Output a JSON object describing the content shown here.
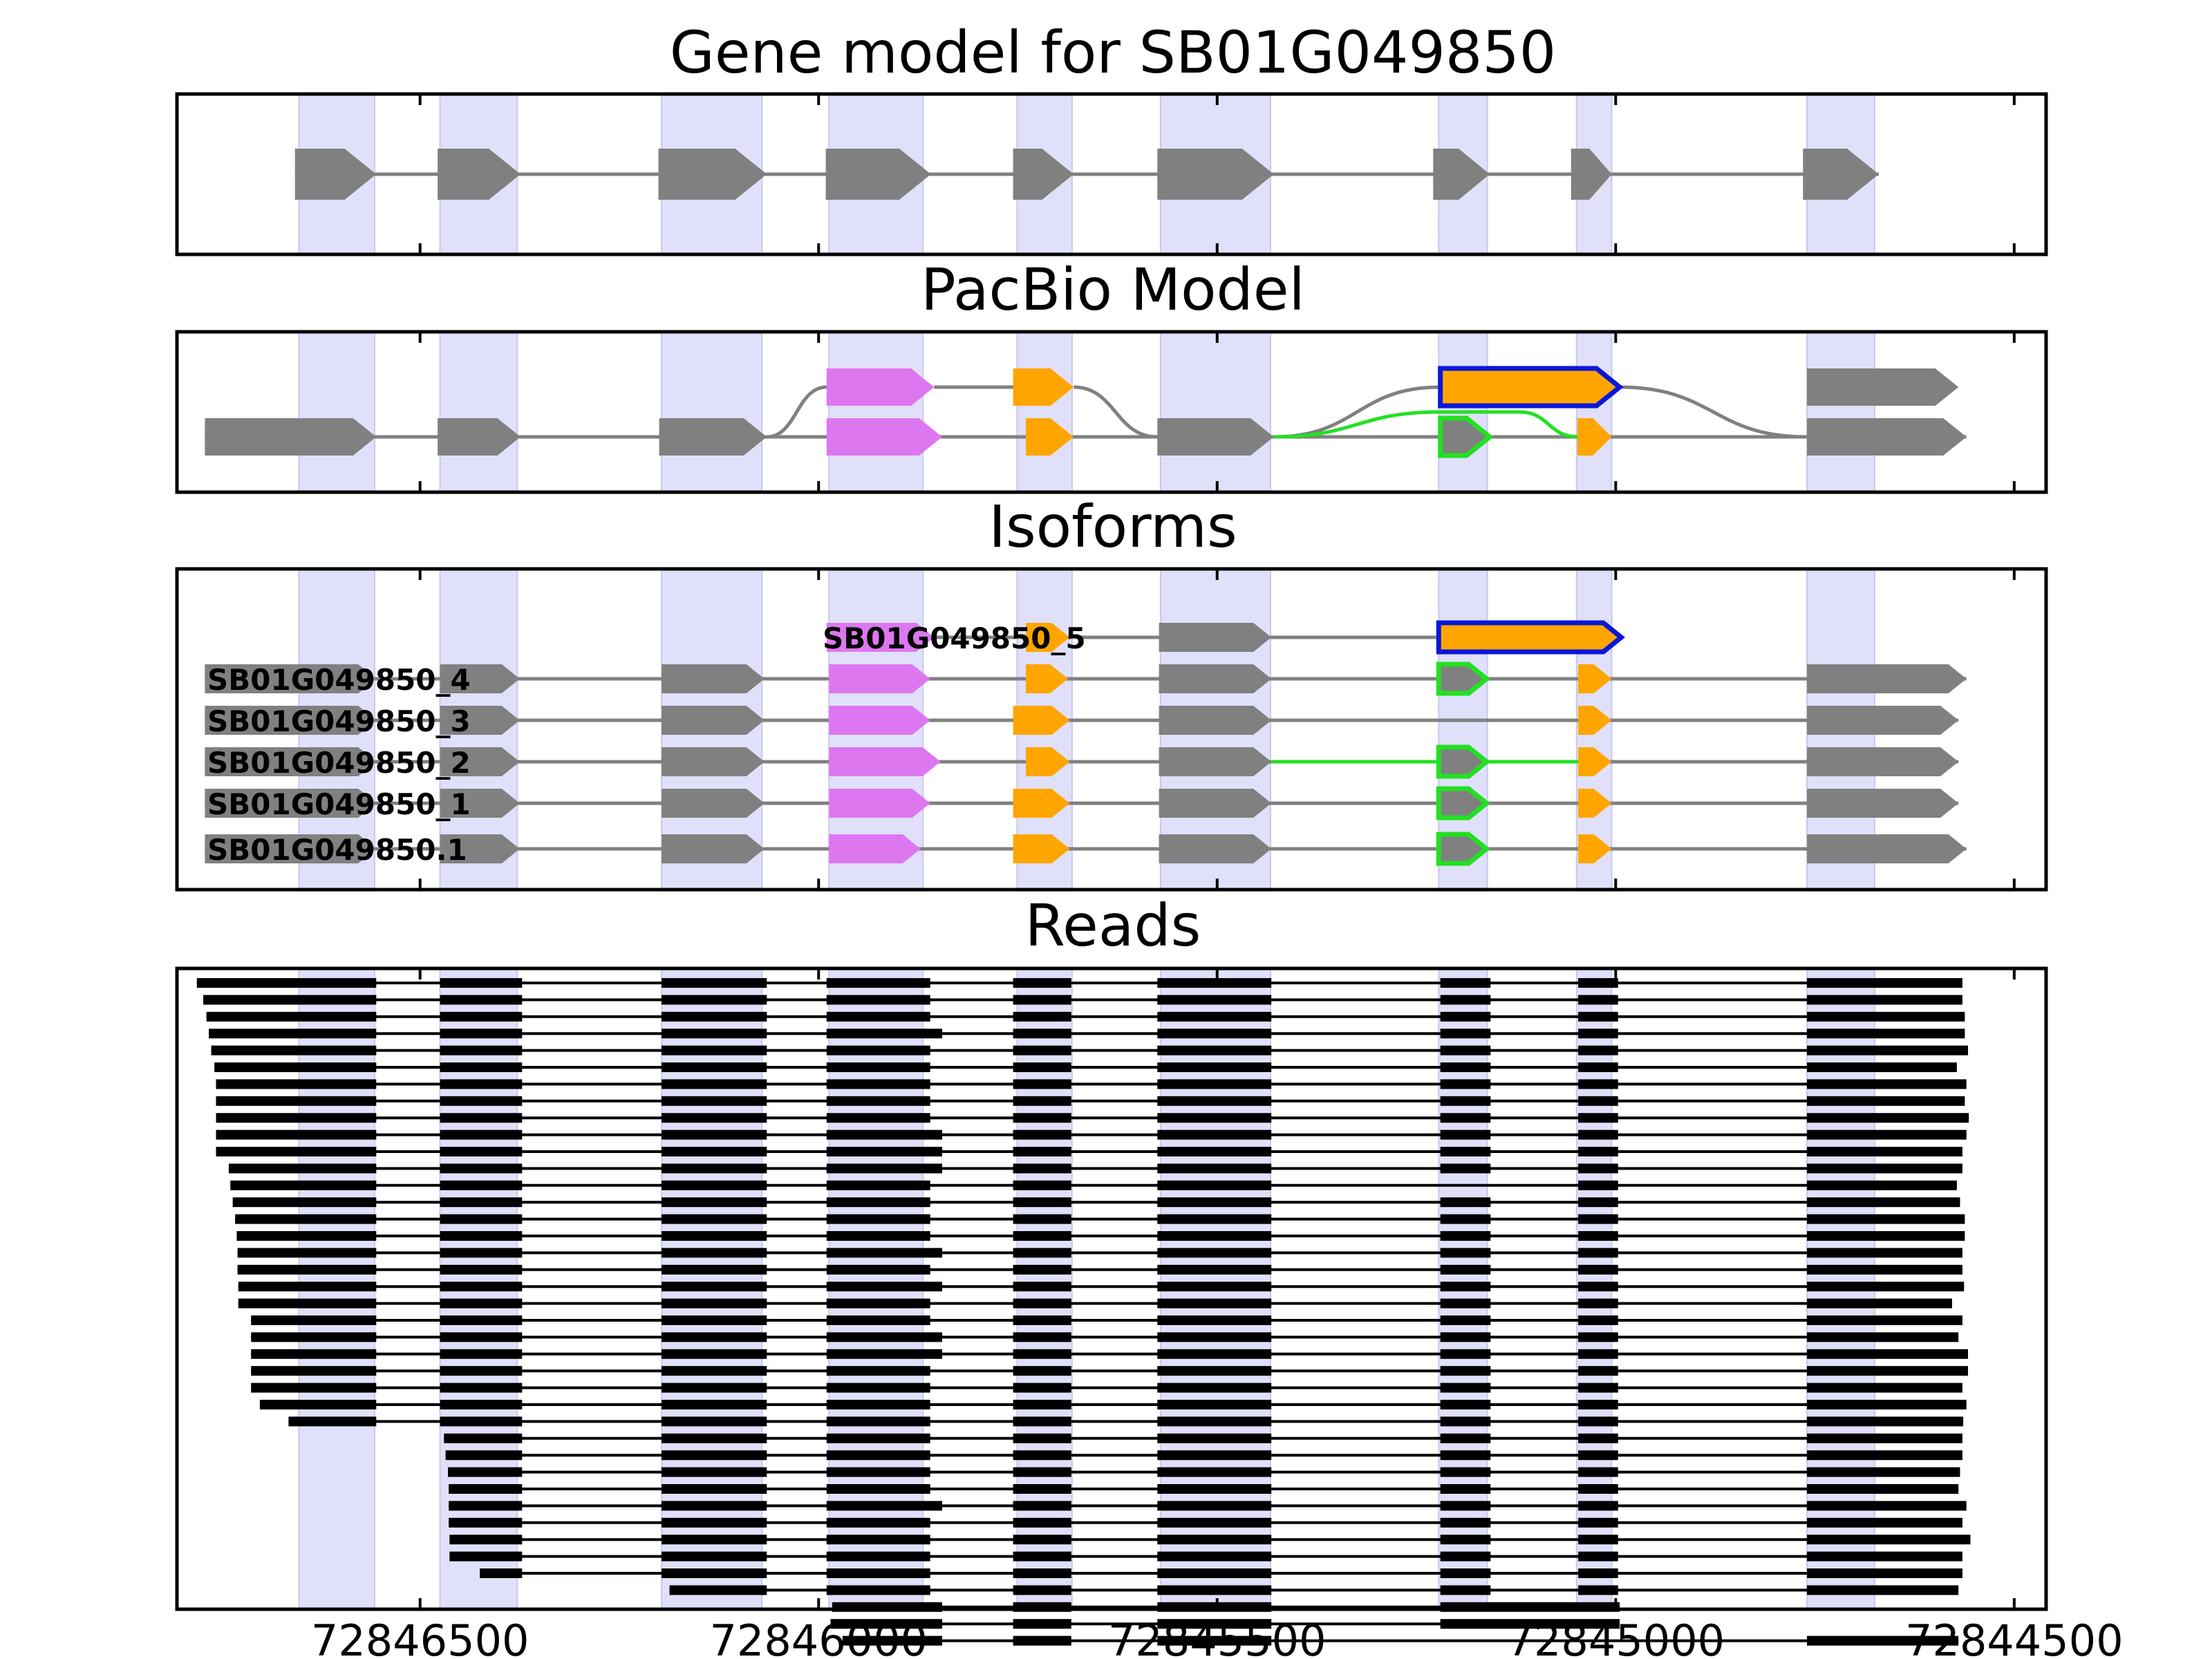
{
  "chart_data": {
    "type": "gene-structure",
    "xaxis": {
      "reversed": true,
      "range": [
        72846805,
        72844460
      ],
      "ticks": [
        {
          "value": 72846500,
          "label": "72846500"
        },
        {
          "value": 72846000,
          "label": "72846000"
        },
        {
          "value": 72845500,
          "label": "72845500"
        },
        {
          "value": 72845000,
          "label": "72845000"
        },
        {
          "value": 72844500,
          "label": "72844500"
        }
      ]
    },
    "colors": {
      "exon": "#808080",
      "intron": "#808080",
      "highlight": "#e0e0fa",
      "alt_violet": "#dd77f0",
      "alt_orange": "#ffa500",
      "alt_green": "#22e022",
      "novel_outline": "#0a17d8",
      "read": "#000000"
    },
    "highlight_regions": [
      [
        72846652,
        72846557
      ],
      [
        72846475,
        72846378
      ],
      [
        72846197,
        72846071
      ],
      [
        72845987,
        72845869
      ],
      [
        72845751,
        72845682
      ],
      [
        72845571,
        72845433
      ],
      [
        72845222,
        72845161
      ],
      [
        72845049,
        72845005
      ],
      [
        72844760,
        72844675
      ]
    ],
    "panels": [
      {
        "title": "Gene model for SB01G049850",
        "models": [
          {
            "strand": "-",
            "exons": [
              [
                72846657,
                72846555
              ],
              [
                72846478,
                72846374
              ],
              [
                72846201,
                72846065
              ],
              [
                72845991,
                72845859
              ],
              [
                72845756,
                72845680
              ],
              [
                72845575,
                72845429
              ],
              [
                72845229,
                72845158
              ],
              [
                72845056,
                72845005
              ],
              [
                72844765,
                72844670
              ]
            ]
          }
        ]
      },
      {
        "title": "PacBio Model",
        "models": [
          {
            "strand": "-",
            "exons": [
              [
                72846770,
                72846555,
                "exon"
              ],
              [
                72846478,
                72846374,
                "exon"
              ],
              [
                72846200,
                72846065,
                "exon"
              ],
              [
                72845990,
                72845845,
                "violet"
              ],
              [
                72845740,
                72845680,
                "orange"
              ],
              [
                72845575,
                72845429,
                "exon"
              ],
              [
                72845220,
                72845158,
                "green"
              ],
              [
                72845048,
                72845005,
                "orange"
              ],
              [
                72844760,
                72844560,
                "exon"
              ]
            ]
          },
          {
            "strand": "-",
            "exons": [
              [
                72845990,
                72845855,
                "violet"
              ],
              [
                72845756,
                72845680,
                "orange"
              ],
              [
                72845220,
                72844995,
                "novel"
              ],
              [
                72844760,
                72844570,
                "exon"
              ]
            ]
          }
        ]
      },
      {
        "title": "Isoforms",
        "isoforms": [
          {
            "name": "SB01G049850_5",
            "exons": [
              [
                72845990,
                72845855,
                "violet"
              ],
              [
                72845740,
                72845685,
                "orange"
              ],
              [
                72845573,
                72845432,
                "exon"
              ],
              [
                72845222,
                72844993,
                "novel"
              ]
            ]
          },
          {
            "name": "SB01G049850_4",
            "exons": [
              [
                72846770,
                72846555,
                "exon"
              ],
              [
                72846475,
                72846375,
                "exon"
              ],
              [
                72846197,
                72846068,
                "exon"
              ],
              [
                72845987,
                72845860,
                "violet"
              ],
              [
                72845740,
                72845687,
                "orange"
              ],
              [
                72845573,
                72845432,
                "exon"
              ],
              [
                72845222,
                72845162,
                "green"
              ],
              [
                72845047,
                72845005,
                "orange"
              ],
              [
                72844760,
                72844560,
                "exon"
              ]
            ]
          },
          {
            "name": "SB01G049850_3",
            "exons": [
              [
                72846770,
                72846555,
                "exon"
              ],
              [
                72846475,
                72846375,
                "exon"
              ],
              [
                72846197,
                72846068,
                "exon"
              ],
              [
                72845987,
                72845860,
                "violet"
              ],
              [
                72845756,
                72845685,
                "orange"
              ],
              [
                72845573,
                72845432,
                "exon"
              ],
              [
                72845047,
                72845005,
                "orange"
              ],
              [
                72844760,
                72844570,
                "exon"
              ]
            ]
          },
          {
            "name": "SB01G049850_2",
            "exons": [
              [
                72846770,
                72846555,
                "exon"
              ],
              [
                72846475,
                72846375,
                "exon"
              ],
              [
                72846197,
                72846068,
                "exon"
              ],
              [
                72845987,
                72845847,
                "violet"
              ],
              [
                72845740,
                72845685,
                "orange"
              ],
              [
                72845573,
                72845432,
                "exon"
              ],
              [
                72845222,
                72845162,
                "green"
              ],
              [
                72845047,
                72845005,
                "orange"
              ],
              [
                72844760,
                72844570,
                "exon"
              ]
            ]
          },
          {
            "name": "SB01G049850_1",
            "exons": [
              [
                72846770,
                72846555,
                "exon"
              ],
              [
                72846475,
                72846375,
                "exon"
              ],
              [
                72846197,
                72846068,
                "exon"
              ],
              [
                72845987,
                72845860,
                "violet"
              ],
              [
                72845756,
                72845685,
                "orange"
              ],
              [
                72845573,
                72845432,
                "exon"
              ],
              [
                72845222,
                72845162,
                "green"
              ],
              [
                72845047,
                72845005,
                "orange"
              ],
              [
                72844760,
                72844570,
                "exon"
              ]
            ]
          },
          {
            "name": "SB01G049850.1",
            "exons": [
              [
                72846770,
                72846555,
                "exon"
              ],
              [
                72846475,
                72846375,
                "exon"
              ],
              [
                72846197,
                72846068,
                "exon"
              ],
              [
                72845987,
                72845872,
                "violet"
              ],
              [
                72845756,
                72845685,
                "orange"
              ],
              [
                72845573,
                72845432,
                "exon"
              ],
              [
                72845222,
                72845162,
                "green"
              ],
              [
                72845047,
                72845005,
                "orange"
              ],
              [
                72844760,
                72844560,
                "exon"
              ]
            ]
          }
        ]
      },
      {
        "title": "Reads",
        "reads": {
          "full_exons": [
            [
              72846475,
              72846372
            ],
            [
              72846197,
              72846065
            ],
            [
              72845990,
              72845845
            ],
            [
              72845756,
              72845683
            ],
            [
              72845575,
              72845432
            ],
            [
              72845220,
              72845157
            ],
            [
              72845047,
              72844997
            ],
            [
              72844760
            ]
          ],
          "starts": [
            72846780,
            72846772,
            72846768,
            72846765,
            72846762,
            72846758,
            72846756,
            72846756,
            72846756,
            72846756,
            72846756,
            72846740,
            72846738,
            72846735,
            72846732,
            72846730,
            72846729,
            72846729,
            72846728,
            72846728,
            72846712,
            72846712,
            72846712,
            72846712,
            72846712,
            72846701,
            72846665,
            72846470,
            72846468,
            72846465,
            72846464,
            72846464,
            72846464,
            72846463,
            72846463,
            72846425,
            72846187,
            72845983,
            72845985,
            72845970
          ],
          "ends": [
            72844565,
            72844565,
            72844562,
            72844562,
            72844558,
            72844572,
            72844560,
            72844562,
            72844557,
            72844560,
            72844565,
            72844565,
            72844572,
            72844568,
            72844562,
            72844562,
            72844565,
            72844565,
            72844563,
            72844578,
            72844565,
            72844570,
            72844558,
            72844558,
            72844565,
            72844560,
            72844564,
            72844565,
            72844565,
            72844568,
            72844570,
            72844560,
            72844565,
            72844555,
            72844565,
            72844565,
            72844570,
            72844995,
            72844995,
            72844570
          ],
          "long_violet_rows": [
            3,
            9,
            10,
            11,
            16,
            18,
            21,
            22,
            31,
            37,
            38,
            39
          ],
          "short_violet_rows": [
            0,
            1,
            2,
            4,
            5,
            6,
            7,
            8,
            12,
            13,
            14,
            15,
            17,
            19,
            20,
            23,
            24,
            25,
            26,
            27,
            28,
            29,
            30,
            32,
            33,
            34,
            35,
            36
          ],
          "skip_exon6_rows": [
            12
          ],
          "novel_rows": [
            37,
            38
          ]
        }
      }
    ]
  }
}
